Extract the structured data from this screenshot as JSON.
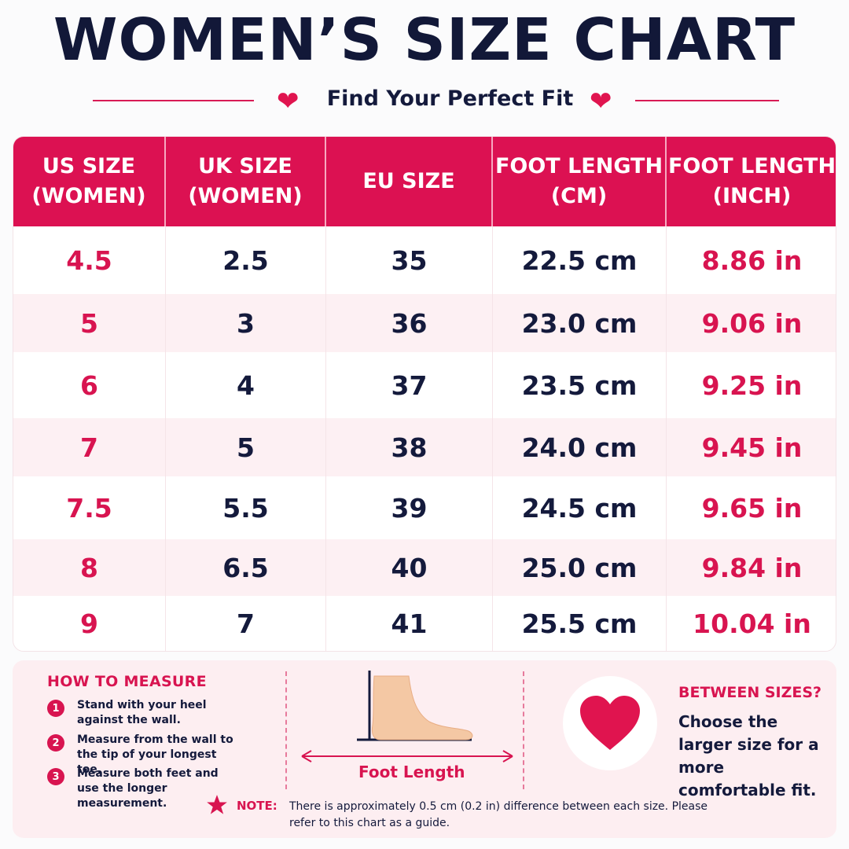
{
  "title": "WOMEN’S SIZE CHART",
  "subtitle": "Find Your Perfect Fit",
  "table": {
    "headers": [
      "US SIZE\n(WOMEN)",
      "UK SIZE\n(WOMEN)",
      "EU SIZE",
      "FOOT LENGTH\n(CM)",
      "FOOT LENGTH\n(INCH)"
    ],
    "rows": [
      [
        "4.5",
        "2.5",
        "35",
        "22.5 cm",
        "8.86 in"
      ],
      [
        "5",
        "3",
        "36",
        "23.0 cm",
        "9.06 in"
      ],
      [
        "6",
        "4",
        "37",
        "23.5 cm",
        "9.25 in"
      ],
      [
        "7",
        "5",
        "38",
        "24.0 cm",
        "9.45 in"
      ],
      [
        "7.5",
        "5.5",
        "39",
        "24.5 cm",
        "9.65 in"
      ],
      [
        "8",
        "6.5",
        "40",
        "25.0 cm",
        "9.84 in"
      ],
      [
        "9",
        "7",
        "41",
        "25.5 cm",
        "10.04 in"
      ]
    ]
  },
  "how_to_measure": {
    "title": "HOW TO MEASURE",
    "steps": [
      {
        "num": "1",
        "text": "Stand with your heel against the wall."
      },
      {
        "num": "2",
        "text": "Measure from the wall to the tip of your longest toe."
      },
      {
        "num": "3",
        "text": "Measure both feet and use the longer measurement."
      }
    ]
  },
  "diagram": {
    "label": "Foot Length"
  },
  "between_sizes": {
    "title": "BETWEEN SIZES?",
    "text": "Choose the larger size for a more comfortable fit."
  },
  "note": {
    "label": "NOTE:",
    "text": "There is approximately 0.5 cm (0.2 in) difference between each size. Please refer to this chart as a guide."
  },
  "colors": {
    "accent": "#dc1152",
    "navy": "#141a3c",
    "row_tint": "#fdf0f3"
  },
  "icons": [
    "heart-icon",
    "star-icon",
    "foot-icon",
    "arrow-icon"
  ]
}
